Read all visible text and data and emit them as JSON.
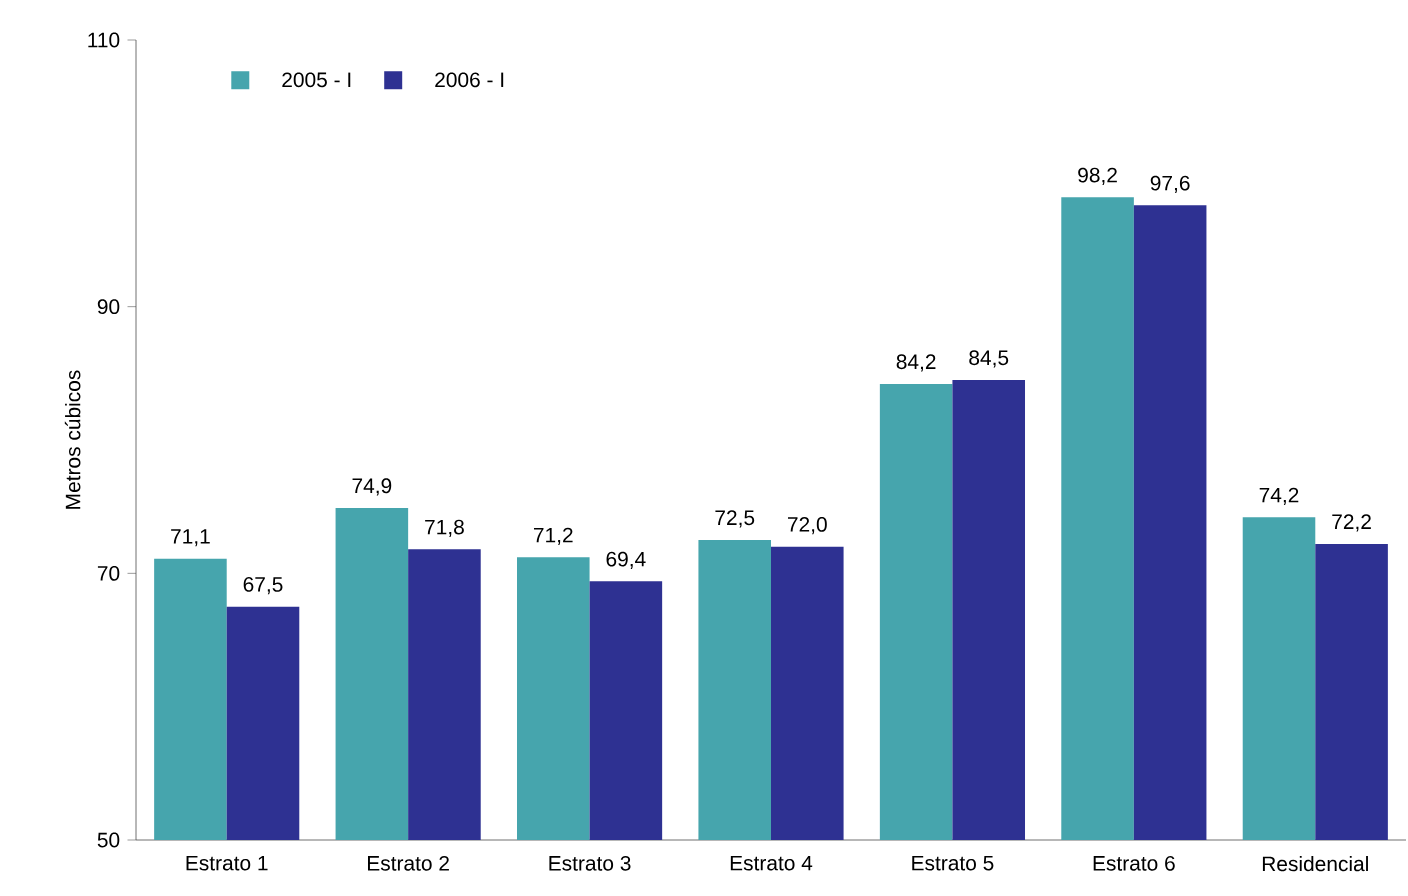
{
  "chart_data": {
    "type": "bar",
    "ylabel": "Metros cúbicos",
    "categories": [
      "Estrato 1",
      "Estrato 2",
      "Estrato 3",
      "Estrato 4",
      "Estrato 5",
      "Estrato 6",
      "Residencial"
    ],
    "series": [
      {
        "name": "2005 - I",
        "color": "#46a5ad",
        "values": [
          71.1,
          74.9,
          71.2,
          72.5,
          84.2,
          98.2,
          74.2
        ],
        "value_labels": [
          "71,1",
          "74,9",
          "71,2",
          "72,5",
          "84,2",
          "98,2",
          "74,2"
        ]
      },
      {
        "name": "2006 - I",
        "color": "#2e3192",
        "values": [
          67.5,
          71.8,
          69.4,
          72.0,
          84.5,
          97.6,
          72.2
        ],
        "value_labels": [
          "67,5",
          "71,8",
          "69,4",
          "72,0",
          "84,5",
          "97,6",
          "72,2"
        ]
      }
    ],
    "ylim": [
      50,
      110
    ],
    "yticks": [
      50,
      70,
      90,
      110
    ],
    "grid": false,
    "legend": "top left"
  }
}
